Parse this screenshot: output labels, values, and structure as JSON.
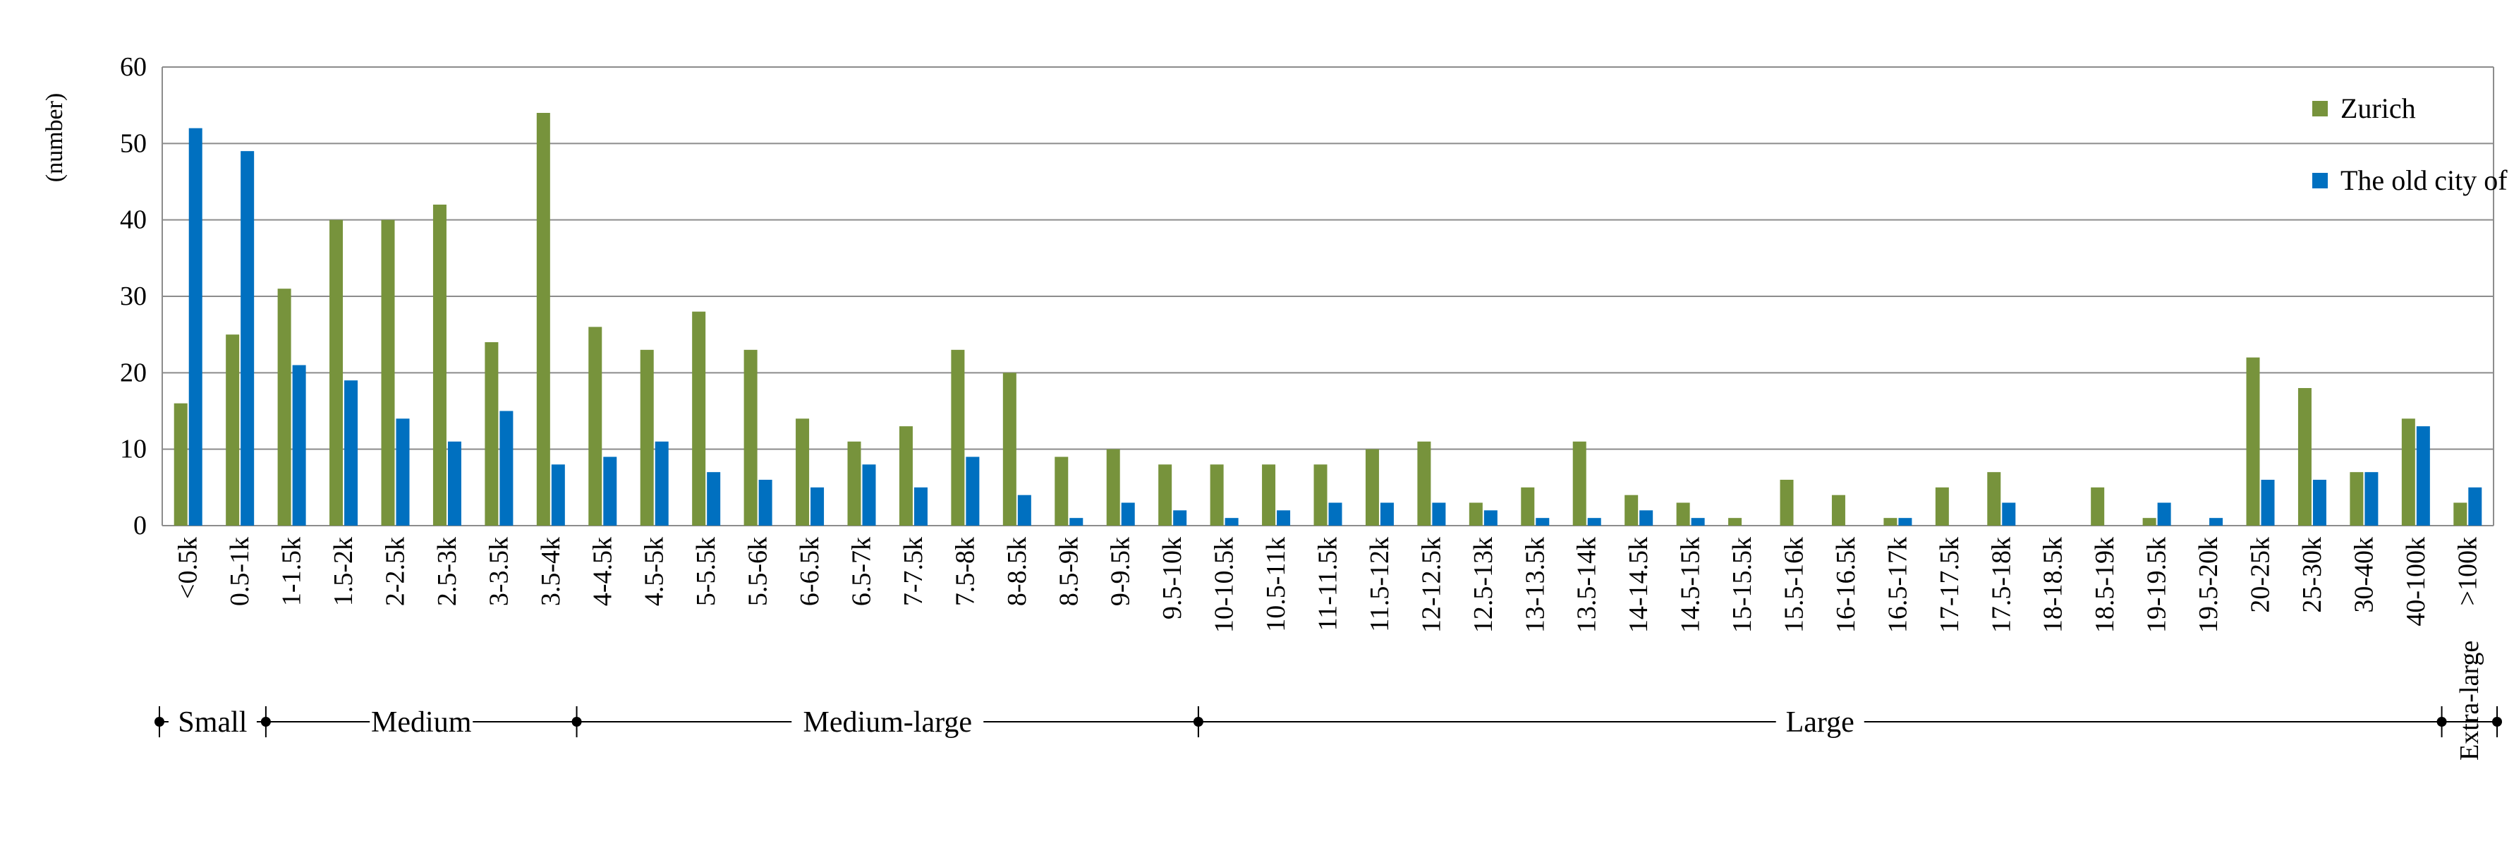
{
  "chart_data": {
    "type": "bar",
    "ylabel": "(number)",
    "ylim": [
      0,
      60
    ],
    "yticks": [
      0,
      10,
      20,
      30,
      40,
      50,
      60
    ],
    "grid": true,
    "legend_position": "top-right",
    "categories": [
      "<0.5k",
      "0.5-1k",
      "1-1.5k",
      "1.5-2k",
      "2-2.5k",
      "2.5-3k",
      "3-3.5k",
      "3.5-4k",
      "4-4.5k",
      "4.5-5k",
      "5-5.5k",
      "5.5-6k",
      "6-6.5k",
      "6.5-7k",
      "7-7.5k",
      "7.5-8k",
      "8-8.5k",
      "8.5-9k",
      "9-9.5k",
      "9.5-10k",
      "10-10.5k",
      "10.5-11k",
      "11-11.5k",
      "11.5-12k",
      "12-12.5k",
      "12.5-13k",
      "13-13.5k",
      "13.5-14k",
      "14-14.5k",
      "14.5-15k",
      "15-15.5k",
      "15.5-16k",
      "16-16.5k",
      "16.5-17k",
      "17-17.5k",
      "17.5-18k",
      "18-18.5k",
      "18.5-19k",
      "19-19.5k",
      "19.5-20k",
      "20-25k",
      "25-30k",
      "30-40k",
      "40-100k",
      ">100k"
    ],
    "series": [
      {
        "name": "Zurich",
        "color": "#77933c",
        "values": [
          16,
          25,
          31,
          40,
          40,
          42,
          24,
          54,
          26,
          23,
          28,
          23,
          14,
          11,
          13,
          23,
          20,
          9,
          10,
          8,
          8,
          8,
          8,
          10,
          11,
          3,
          5,
          11,
          4,
          3,
          1,
          6,
          4,
          1,
          5,
          7,
          0,
          5,
          1,
          0,
          22,
          18,
          7,
          14,
          3
        ]
      },
      {
        "name": "The old city of Nanjing",
        "color": "#0070c0",
        "values": [
          52,
          49,
          21,
          19,
          14,
          11,
          15,
          8,
          9,
          11,
          7,
          6,
          5,
          8,
          5,
          9,
          4,
          1,
          3,
          2,
          1,
          2,
          3,
          3,
          3,
          2,
          1,
          1,
          2,
          1,
          0,
          0,
          0,
          1,
          0,
          3,
          0,
          0,
          3,
          1,
          6,
          6,
          7,
          13,
          5
        ]
      }
    ],
    "groups": [
      {
        "label": "Small",
        "from": 0,
        "to": 2
      },
      {
        "label": "Medium",
        "from": 2,
        "to": 8
      },
      {
        "label": "Medium-large",
        "from": 8,
        "to": 20
      },
      {
        "label": "Large",
        "from": 20,
        "to": 44
      },
      {
        "label": "Extra-large",
        "from": 44,
        "to": 45
      }
    ]
  }
}
